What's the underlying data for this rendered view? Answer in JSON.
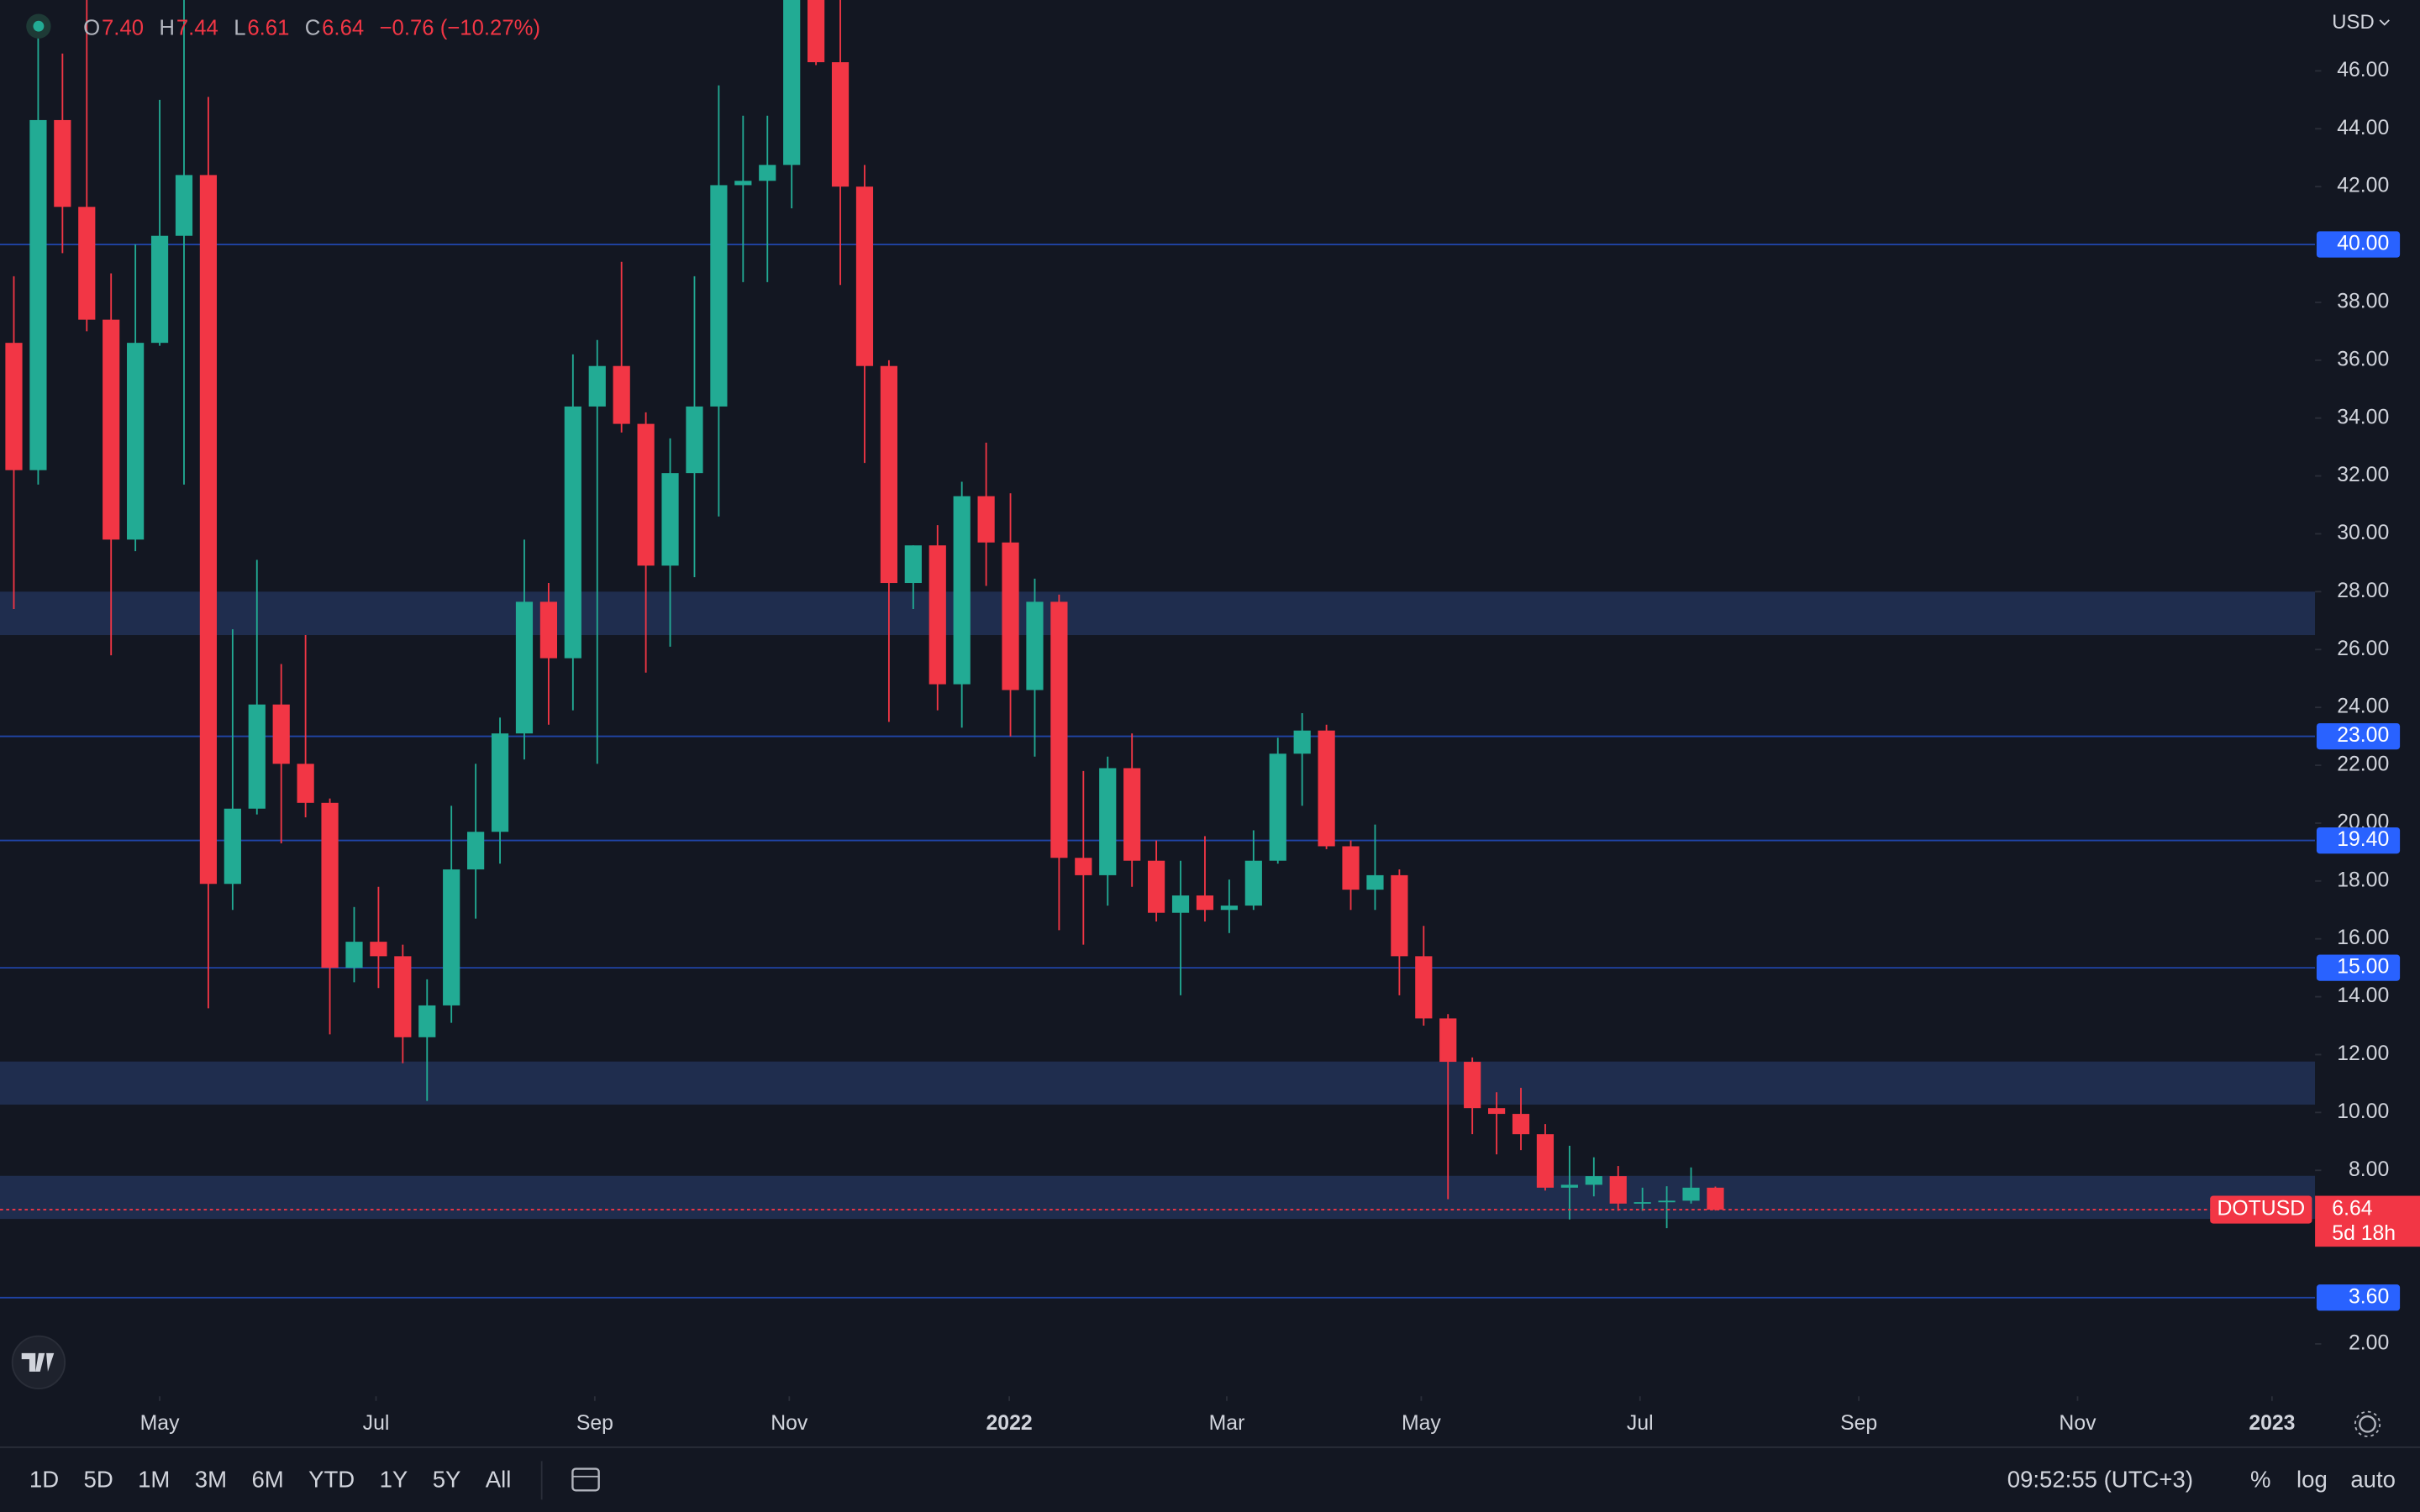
{
  "chart_data": {
    "type": "candlestick",
    "currency": "USD",
    "ohlc_legend": [
      {
        "key": "O",
        "value": "7.40"
      },
      {
        "key": "H",
        "value": "7.44"
      },
      {
        "key": "L",
        "value": "6.61"
      },
      {
        "key": "C",
        "value": "6.64"
      }
    ],
    "change": "−0.76 (−10.27%)",
    "categories": [
      null,
      null,
      null,
      null,
      null,
      null,
      null,
      null,
      null,
      null,
      null,
      null,
      null,
      null,
      null,
      null,
      null,
      null,
      null,
      null,
      null,
      null,
      null,
      null,
      null,
      null,
      null,
      null,
      null,
      null,
      null,
      null,
      null,
      null,
      null,
      null,
      null,
      null,
      null,
      null,
      null,
      null,
      null,
      null,
      null,
      null,
      null,
      null,
      null,
      null,
      null,
      null,
      null,
      null,
      null,
      null,
      null,
      null,
      null,
      null,
      null,
      null,
      null,
      null,
      null,
      null,
      null,
      null,
      null,
      null,
      null
    ],
    "open": [
      36.6,
      32.2,
      44.3,
      41.3,
      37.4,
      29.8,
      36.6,
      40.3,
      42.4,
      17.9,
      20.5,
      24.1,
      22.05,
      20.7,
      15.0,
      15.9,
      15.4,
      12.6,
      13.7,
      18.4,
      19.7,
      23.1,
      27.65,
      25.7,
      34.4,
      35.8,
      33.8,
      28.9,
      32.1,
      34.4,
      42.05,
      42.2,
      42.75,
      49.5,
      46.3,
      42.0,
      35.8,
      28.3,
      29.6,
      24.8,
      31.3,
      29.7,
      24.6,
      27.65,
      18.8,
      18.2,
      21.9,
      18.7,
      16.9,
      17.5,
      17.0,
      17.15,
      18.7,
      22.4,
      23.2,
      19.2,
      17.7,
      18.2,
      15.4,
      13.25,
      11.75,
      10.15,
      9.95,
      9.25,
      7.4,
      7.5,
      7.8,
      6.85,
      6.9,
      6.95,
      7.4
    ],
    "high": [
      38.9,
      47.9,
      46.6,
      48.5,
      39,
      40.0,
      45,
      48.5,
      45.1,
      26.7,
      29.1,
      25.5,
      26.5,
      20.85,
      17.1,
      17.8,
      15.8,
      14.6,
      20.6,
      22.05,
      23.65,
      29.8,
      28.3,
      36.2,
      36.7,
      39.4,
      34.2,
      33.3,
      38.9,
      45.5,
      44.45,
      44.45,
      55,
      53,
      49,
      42.75,
      36.0,
      29.6,
      30.3,
      31.8,
      33.15,
      31.4,
      28.45,
      27.9,
      21.8,
      22.3,
      23.1,
      19.4,
      18.7,
      19.55,
      18.05,
      19.75,
      22.95,
      23.8,
      23.4,
      19.4,
      19.95,
      18.4,
      16.45,
      13.4,
      11.9,
      10.7,
      10.85,
      9.6,
      8.85,
      8.45,
      8.15,
      7.4,
      7.45,
      8.1,
      7.44
    ],
    "low": [
      27.4,
      31.7,
      39.7,
      37,
      25.8,
      29.4,
      36.5,
      31.7,
      13.6,
      17,
      20.3,
      19.3,
      20.2,
      12.7,
      14.5,
      14.3,
      11.7,
      10.4,
      13.1,
      16.7,
      18.6,
      22.2,
      23.4,
      23.9,
      22.05,
      33.5,
      25.2,
      26.1,
      28.5,
      30.6,
      38.7,
      38.7,
      41.25,
      46.2,
      38.6,
      32.45,
      23.5,
      27.4,
      23.9,
      23.3,
      28.2,
      23.0,
      22.3,
      16.3,
      15.8,
      17.15,
      17.8,
      16.6,
      14.05,
      16.6,
      16.2,
      17.0,
      18.6,
      20.6,
      19.1,
      17.0,
      17.0,
      14.05,
      13.0,
      7.0,
      9.25,
      8.55,
      8.7,
      7.3,
      6.3,
      7.1,
      6.6,
      6.6,
      6.0,
      6.85,
      6.61
    ],
    "close": [
      32.2,
      44.3,
      41.3,
      37.4,
      29.8,
      36.6,
      40.3,
      42.4,
      17.9,
      20.5,
      24.1,
      22.05,
      20.7,
      15.0,
      15.9,
      15.4,
      12.6,
      13.7,
      18.4,
      19.7,
      23.1,
      27.65,
      25.7,
      34.4,
      35.8,
      33.8,
      28.9,
      32.1,
      34.4,
      42.05,
      42.2,
      42.75,
      49.5,
      46.3,
      42.0,
      35.8,
      28.3,
      29.6,
      24.8,
      31.3,
      29.7,
      24.6,
      27.65,
      18.8,
      18.2,
      21.9,
      18.7,
      16.9,
      17.5,
      17.0,
      17.15,
      18.7,
      22.4,
      23.2,
      19.2,
      17.7,
      18.2,
      15.4,
      13.25,
      11.75,
      10.15,
      9.95,
      9.25,
      7.4,
      7.5,
      7.8,
      6.85,
      6.9,
      6.95,
      7.4,
      6.64
    ],
    "up_color": "#22ab94",
    "down_color": "#f23645",
    "zone_color": "#1f2d4e",
    "level_color": "#2962ff",
    "zones": [
      [
        26.5,
        28
      ],
      [
        10.27,
        11.76
      ],
      [
        6.32,
        7.81
      ]
    ],
    "levels": [
      {
        "value": 40,
        "label": "40.00"
      },
      {
        "value": 23,
        "label": "23.00"
      },
      {
        "value": 19.4,
        "label": "19.40"
      },
      {
        "value": 15,
        "label": "15.00"
      },
      {
        "value": 3.6,
        "label": "3.60"
      }
    ],
    "last_price": {
      "value": 6.64,
      "label": "6.64",
      "symbol": "DOTUSD",
      "countdown": "5d 18h"
    },
    "xlim": [
      -0.57,
      94.67
    ],
    "xticks": [
      {
        "value": 6,
        "label": "May"
      },
      {
        "value": 14.9,
        "label": "Jul"
      },
      {
        "value": 23.9,
        "label": "Sep"
      },
      {
        "value": 31.9,
        "label": "Nov"
      },
      {
        "value": 40.95,
        "label": "2022"
      },
      {
        "value": 49.9,
        "label": "Mar"
      },
      {
        "value": 57.9,
        "label": "May"
      },
      {
        "value": 66.9,
        "label": "Jul"
      },
      {
        "value": 75.9,
        "label": "Sep"
      },
      {
        "value": 84.9,
        "label": "Nov"
      },
      {
        "value": 92.9,
        "label": "2023"
      }
    ],
    "ylim": [
      0.19,
      48.45
    ],
    "yticks": [
      {
        "value": 2,
        "label": "2.00"
      },
      {
        "value": 8,
        "label": "8.00"
      },
      {
        "value": 10,
        "label": "10.00"
      },
      {
        "value": 12,
        "label": "12.00"
      },
      {
        "value": 14,
        "label": "14.00"
      },
      {
        "value": 16,
        "label": "16.00"
      },
      {
        "value": 18,
        "label": "18.00"
      },
      {
        "value": 20,
        "label": "20.00"
      },
      {
        "value": 22,
        "label": "22.00"
      },
      {
        "value": 24,
        "label": "24.00"
      },
      {
        "value": 26,
        "label": "26.00"
      },
      {
        "value": 28,
        "label": "28.00"
      },
      {
        "value": 30,
        "label": "30.00"
      },
      {
        "value": 32,
        "label": "32.00"
      },
      {
        "value": 34,
        "label": "34.00"
      },
      {
        "value": 36,
        "label": "36.00"
      },
      {
        "value": 38,
        "label": "38.00"
      },
      {
        "value": 42,
        "label": "42.00"
      },
      {
        "value": 44,
        "label": "44.00"
      },
      {
        "value": 46,
        "label": "46.00"
      }
    ]
  },
  "toolbar": {
    "ranges": [
      "1D",
      "5D",
      "1M",
      "3M",
      "6M",
      "YTD",
      "1Y",
      "5Y",
      "All"
    ],
    "clock": "09:52:55 (UTC+3)",
    "options": [
      "%",
      "log",
      "auto"
    ]
  }
}
